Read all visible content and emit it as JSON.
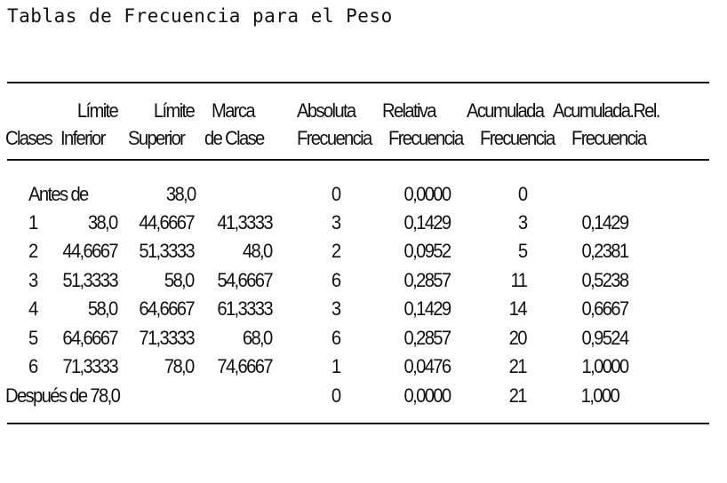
{
  "title": "Tablas de Frecuencia para el Peso",
  "headers": {
    "limite_inferior": [
      "Límite",
      "Inferior"
    ],
    "limite_superior": [
      "Límite",
      "Superior"
    ],
    "marca": [
      "Marca",
      "de Clase"
    ],
    "clases": "Clases",
    "absoluta": [
      "Absoluta",
      "Frecuencia"
    ],
    "relativa": [
      "Relativa",
      "Frecuencia"
    ],
    "acumulada": [
      "Acumulada",
      "Frecuencia"
    ],
    "acumulada_rel": [
      "Acumulada.Rel.",
      "Frecuencia"
    ]
  },
  "rows": [
    {
      "clase": "Antes de",
      "inf": "",
      "sup": "38,0",
      "marca": "",
      "abs": "0",
      "rel": "0,0000",
      "acum": "0",
      "acumrel": ""
    },
    {
      "clase": "1",
      "inf": "38,0",
      "sup": "44,6667",
      "marca": "41,3333",
      "abs": "3",
      "rel": "0,1429",
      "acum": "3",
      "acumrel": "0,1429"
    },
    {
      "clase": "2",
      "inf": "44,6667",
      "sup": "51,3333",
      "marca": "48,0",
      "abs": "2",
      "rel": "0,0952",
      "acum": "5",
      "acumrel": "0,2381"
    },
    {
      "clase": "3",
      "inf": "51,3333",
      "sup": "58,0",
      "marca": "54,6667",
      "abs": "6",
      "rel": "0,2857",
      "acum": "11",
      "acumrel": "0,5238"
    },
    {
      "clase": "4",
      "inf": "58,0",
      "sup": "64,6667",
      "marca": "61,3333",
      "abs": "3",
      "rel": "0,1429",
      "acum": "14",
      "acumrel": "0,6667"
    },
    {
      "clase": "5",
      "inf": "64,6667",
      "sup": "71,3333",
      "marca": "68,0",
      "abs": "6",
      "rel": "0,2857",
      "acum": "20",
      "acumrel": "0,9524"
    },
    {
      "clase": "6",
      "inf": "71,3333",
      "sup": "78,0",
      "marca": "74,6667",
      "abs": "1",
      "rel": "0,0476",
      "acum": "21",
      "acumrel": "1,0000"
    },
    {
      "clase": "Después de 78,0",
      "inf": "",
      "sup": "",
      "marca": "",
      "abs": "0",
      "rel": "0,0000",
      "acum": "21",
      "acumrel": "1,000"
    }
  ]
}
